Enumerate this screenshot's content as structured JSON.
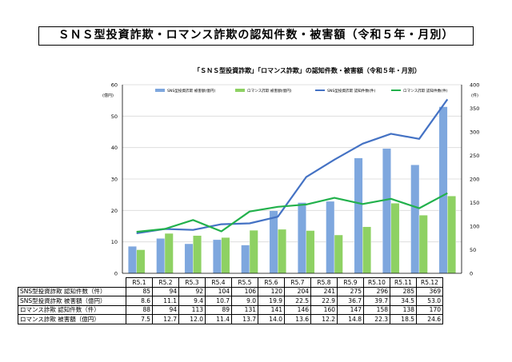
{
  "page_title": "ＳＮＳ型投資詐欺・ロマンス詐欺の認知件数・被害額（令和５年・月別）",
  "chart_data": {
    "type": "bar",
    "title": "「ＳＮＳ型投資詐欺」「ロマンス詐欺」の認知件数・被害額（令和５年・月別）",
    "categories": [
      "R5.1",
      "R5.2",
      "R5.3",
      "R5.4",
      "R5.5",
      "R5.6",
      "R5.7",
      "R5.8",
      "R5.9",
      "R5.10",
      "R5.11",
      "R5.12"
    ],
    "left_axis_unit": "(億円)",
    "right_axis_unit": "(件)",
    "ylim_left": [
      0,
      60
    ],
    "ylim_right": [
      0,
      400
    ],
    "left_ticks": [
      "0",
      "10",
      "20",
      "30",
      "40",
      "50",
      "60"
    ],
    "right_ticks": [
      "0",
      "50",
      "100",
      "150",
      "200",
      "250",
      "300",
      "350",
      "400"
    ],
    "grid": true,
    "legend_position": "top",
    "series": [
      {
        "name": "SNS型投資詐欺 被害額(億円)",
        "kind": "bar",
        "axis": "left",
        "color": "#7ea7de",
        "values": [
          8.6,
          11.1,
          9.4,
          10.7,
          9.0,
          19.9,
          22.5,
          22.9,
          36.7,
          39.7,
          34.5,
          53.0
        ]
      },
      {
        "name": "ロマンス詐欺 被害額(億円)",
        "kind": "bar",
        "axis": "left",
        "color": "#8ed163",
        "values": [
          7.5,
          12.7,
          12.0,
          11.4,
          13.7,
          14.0,
          13.6,
          12.2,
          14.8,
          22.3,
          18.5,
          24.6
        ]
      },
      {
        "name": "SNS型投資詐欺 認知件数(件)",
        "kind": "line",
        "axis": "right",
        "color": "#4472c4",
        "values": [
          85,
          94,
          92,
          104,
          106,
          120,
          204,
          241,
          275,
          296,
          285,
          369
        ]
      },
      {
        "name": "ロマンス詐欺 認知件数(件)",
        "kind": "line",
        "axis": "right",
        "color": "#22b14c",
        "values": [
          88,
          94,
          113,
          89,
          131,
          141,
          146,
          160,
          147,
          158,
          138,
          170
        ]
      }
    ]
  },
  "table": {
    "rows": [
      {
        "label": "SNS型投資詐欺 認知件数（件）",
        "values": [
          "85",
          "94",
          "92",
          "104",
          "106",
          "120",
          "204",
          "241",
          "275",
          "296",
          "285",
          "369"
        ]
      },
      {
        "label": "SNS型投資詐欺 被害額（億円）",
        "values": [
          "8.6",
          "11.1",
          "9.4",
          "10.7",
          "9.0",
          "19.9",
          "22.5",
          "22.9",
          "36.7",
          "39.7",
          "34.5",
          "53.0"
        ]
      },
      {
        "label": "ロマンス詐欺 認知件数（件）",
        "values": [
          "88",
          "94",
          "113",
          "89",
          "131",
          "141",
          "146",
          "160",
          "147",
          "158",
          "138",
          "170"
        ]
      },
      {
        "label": "ロマンス詐欺 被害額（億円）",
        "values": [
          "7.5",
          "12.7",
          "12.0",
          "11.4",
          "13.7",
          "14.0",
          "13.6",
          "12.2",
          "14.8",
          "22.3",
          "18.5",
          "24.6"
        ]
      }
    ]
  },
  "colors": {
    "grid": "#d9d9d9",
    "axis": "#000000"
  }
}
